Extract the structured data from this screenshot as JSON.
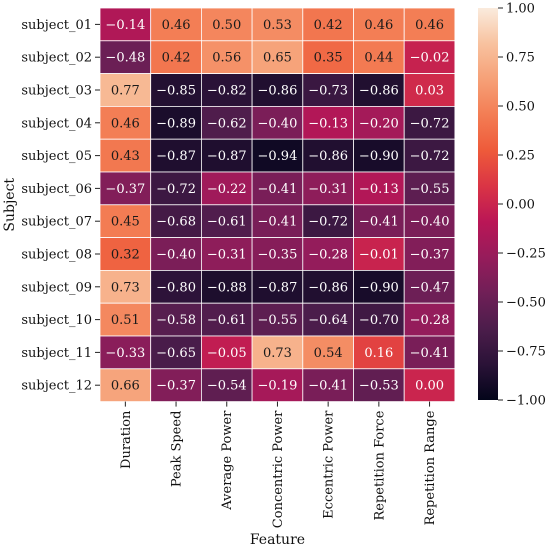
{
  "chart_data": {
    "type": "heatmap",
    "xlabel": "Feature",
    "ylabel": "Subject",
    "columns": [
      "Duration",
      "Peak Speed",
      "Average Power",
      "Concentric Power",
      "Eccentric Power",
      "Repetition Force",
      "Repetition Range"
    ],
    "rows": [
      "subject_01",
      "subject_02",
      "subject_03",
      "subject_04",
      "subject_05",
      "subject_06",
      "subject_07",
      "subject_08",
      "subject_09",
      "subject_10",
      "subject_11",
      "subject_12"
    ],
    "values": [
      [
        -0.14,
        0.46,
        0.5,
        0.53,
        0.42,
        0.46,
        0.46
      ],
      [
        -0.48,
        0.42,
        0.56,
        0.65,
        0.35,
        0.44,
        -0.02
      ],
      [
        0.77,
        -0.85,
        -0.82,
        -0.86,
        -0.73,
        -0.86,
        0.03
      ],
      [
        0.46,
        -0.89,
        -0.62,
        -0.4,
        -0.13,
        -0.2,
        -0.72
      ],
      [
        0.43,
        -0.87,
        -0.87,
        -0.94,
        -0.86,
        -0.9,
        -0.72
      ],
      [
        -0.37,
        -0.72,
        -0.22,
        -0.41,
        -0.31,
        -0.13,
        -0.55
      ],
      [
        0.45,
        -0.68,
        -0.61,
        -0.41,
        -0.72,
        -0.41,
        -0.4
      ],
      [
        0.32,
        -0.4,
        -0.31,
        -0.35,
        -0.28,
        -0.01,
        -0.37
      ],
      [
        0.73,
        -0.8,
        -0.88,
        -0.87,
        -0.86,
        -0.9,
        -0.47
      ],
      [
        0.51,
        -0.58,
        -0.61,
        -0.55,
        -0.64,
        -0.7,
        -0.28
      ],
      [
        -0.33,
        -0.65,
        -0.05,
        0.73,
        0.54,
        0.16,
        -0.41
      ],
      [
        0.66,
        -0.37,
        -0.54,
        -0.19,
        -0.41,
        -0.53,
        0.0
      ]
    ],
    "colorbar": {
      "range": [
        -1.0,
        1.0
      ],
      "ticks": [
        1.0,
        0.75,
        0.5,
        0.25,
        0.0,
        -0.25,
        -0.5,
        -0.75,
        -1.0
      ],
      "tick_labels": [
        "1.00",
        "0.75",
        "0.50",
        "0.25",
        "0.00",
        "−0.25",
        "−0.50",
        "−0.75",
        "−1.00"
      ],
      "colormap": "rocket",
      "stops": [
        "#03051a",
        "#2a1237",
        "#4c1d4b",
        "#701f57",
        "#961c5b",
        "#ba1656",
        "#da3445",
        "#ee5a3a",
        "#f37d54",
        "#f6a077",
        "#f8c29f",
        "#faebdd"
      ]
    },
    "grid": false,
    "legend": "right colorbar"
  }
}
